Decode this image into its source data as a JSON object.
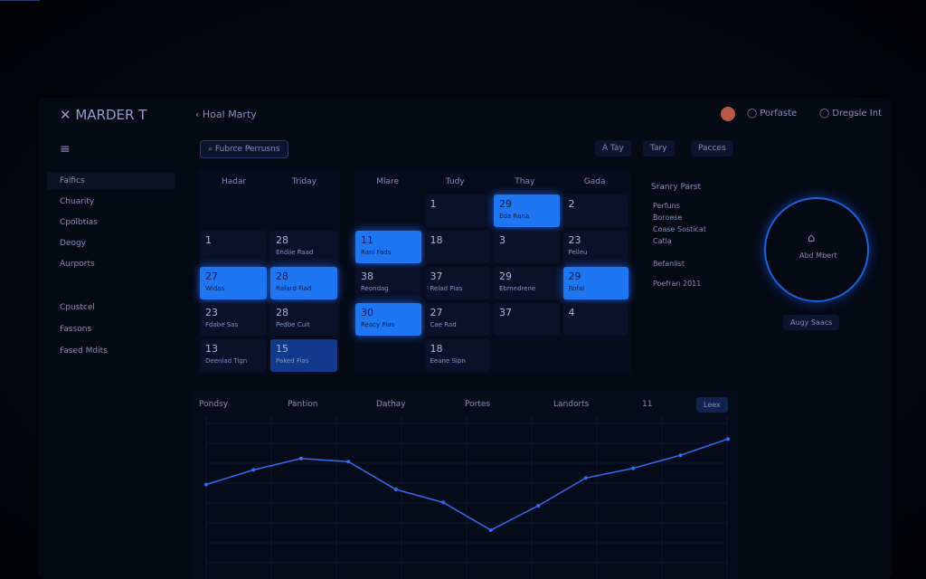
{
  "header": {
    "brand": "MARDER T",
    "back": "Hoal Marty",
    "profile": "Porfaste",
    "settings": "Dregsle Int"
  },
  "toolbar": {
    "search": "Fubrce Perrusns",
    "buttons": [
      "A Tay",
      "Tary",
      "Pacces"
    ]
  },
  "sidebar": {
    "items": [
      "Falfics",
      "Chuarity",
      "Cpolbtias",
      "Deogy",
      "Aurports"
    ],
    "items2": [
      "Cpustcel",
      "Fassons",
      "Fased Mdits"
    ]
  },
  "calendar_left": {
    "headers": [
      "Hadar",
      "Triday"
    ],
    "rows": [
      [
        null,
        null
      ],
      [
        {
          "date": "1"
        },
        {
          "date": "28",
          "note": "Endiie Raad"
        }
      ],
      [
        {
          "date": "27",
          "note": "Widas",
          "state": "highlight"
        },
        {
          "date": "28",
          "note": "Rafard Fiad",
          "state": "highlight"
        }
      ],
      [
        {
          "date": "23",
          "note": "Fdabe Sas"
        },
        {
          "date": "28",
          "note": "Pedbe Cuit"
        }
      ],
      [
        {
          "date": "13",
          "note": "Deenlad Tign"
        },
        {
          "date": "15",
          "note": "Paked Fias",
          "state": "selected"
        }
      ]
    ]
  },
  "calendar_right": {
    "headers": [
      "Mlare",
      "Tudy",
      "Thay",
      "Gada"
    ],
    "rows": [
      [
        null,
        {
          "date": "1"
        },
        {
          "date": "29",
          "note": "Eda Rana",
          "state": "highlight"
        },
        {
          "date": "2"
        }
      ],
      [
        {
          "date": "11",
          "note": "Rani Fads",
          "state": "highlight"
        },
        {
          "date": "18"
        },
        {
          "date": "3"
        },
        {
          "date": "23",
          "note": "Pelleu"
        }
      ],
      [
        {
          "date": "38",
          "note": "Reondag"
        },
        {
          "date": "37",
          "note": "Relad Pias"
        },
        {
          "date": "29",
          "note": "Ebmedrene"
        },
        {
          "date": "29",
          "note": "Rofal",
          "state": "highlight"
        }
      ],
      [
        {
          "date": "30",
          "note": "Reacy Pias",
          "state": "highlight"
        },
        {
          "date": "27",
          "note": "Cae Rad"
        },
        {
          "date": "37"
        },
        {
          "date": "4"
        }
      ],
      [
        null,
        {
          "date": "18",
          "note": "Eeane Sipn"
        },
        null,
        null
      ]
    ]
  },
  "panel": {
    "title": "Sranry Parst",
    "items": [
      "Perfuns",
      "Boroese",
      "Coase Sosticat",
      "Catla"
    ],
    "list2": [
      "Befanlist",
      "Poefran 2011"
    ],
    "circle": "Abd Mbert",
    "button": "Augy Saacs"
  },
  "chart_data": {
    "type": "line",
    "tabs": [
      "Pondsy",
      "Pantion",
      "Dathay",
      "Portes",
      "Landorts",
      "11"
    ],
    "action": "Leex",
    "color": "#2f6ef0",
    "values": [
      58,
      67,
      74,
      72,
      55,
      47,
      30,
      45,
      62,
      68,
      76,
      86
    ],
    "ylim": [
      0,
      100
    ]
  }
}
